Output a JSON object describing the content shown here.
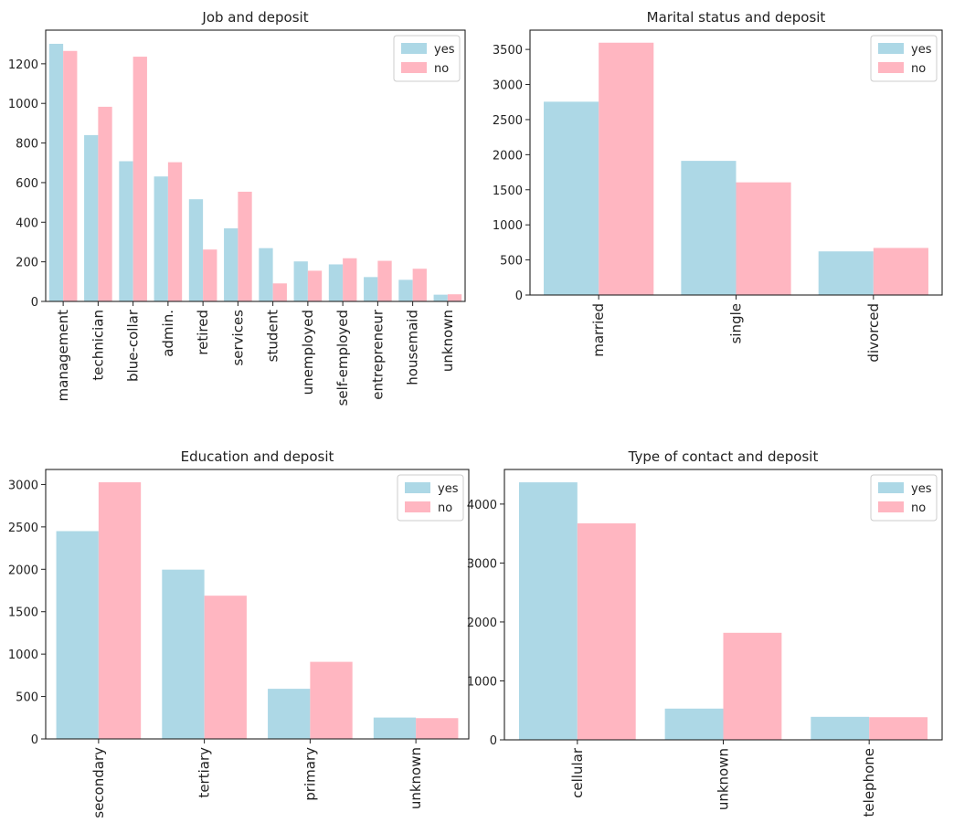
{
  "colors": {
    "yes": "#add8e6",
    "no": "#ffb6c1",
    "axis": "#222222",
    "legend_border": "#cccccc"
  },
  "chart_data": [
    {
      "type": "bar",
      "title": "Job and deposit",
      "categories": [
        "management",
        "technician",
        "blue-collar",
        "admin.",
        "retired",
        "services",
        "student",
        "unemployed",
        "self-employed",
        "entrepreneur",
        "housemaid",
        "unknown"
      ],
      "series": [
        {
          "name": "yes",
          "values": [
            1301,
            840,
            708,
            631,
            516,
            369,
            269,
            202,
            187,
            123,
            109,
            34
          ]
        },
        {
          "name": "no",
          "values": [
            1265,
            983,
            1236,
            703,
            262,
            554,
            91,
            155,
            218,
            205,
            165,
            36
          ]
        }
      ],
      "yticks": [
        0,
        200,
        400,
        600,
        800,
        1000,
        1200
      ],
      "ylim": [
        0,
        1370
      ],
      "legend": "top-right"
    },
    {
      "type": "bar",
      "title": "Marital status and deposit",
      "categories": [
        "married",
        "single",
        "divorced"
      ],
      "series": [
        {
          "name": "yes",
          "values": [
            2755,
            1912,
            622
          ]
        },
        {
          "name": "no",
          "values": [
            3596,
            1606,
            671
          ]
        }
      ],
      "yticks": [
        0,
        500,
        1000,
        1500,
        2000,
        2500,
        3000,
        3500
      ],
      "ylim": [
        0,
        3775
      ],
      "legend": "top-right"
    },
    {
      "type": "bar",
      "title": "Education and deposit",
      "categories": [
        "secondary",
        "tertiary",
        "primary",
        "unknown"
      ],
      "series": [
        {
          "name": "yes",
          "values": [
            2450,
            1996,
            591,
            252
          ]
        },
        {
          "name": "no",
          "values": [
            3026,
            1689,
            909,
            245
          ]
        }
      ],
      "yticks": [
        0,
        500,
        1000,
        1500,
        2000,
        2500,
        3000
      ],
      "ylim": [
        0,
        3177
      ],
      "legend": "top-right"
    },
    {
      "type": "bar",
      "title": "Type of contact and deposit",
      "categories": [
        "cellular",
        "unknown",
        "telephone"
      ],
      "series": [
        {
          "name": "yes",
          "values": [
            4369,
            530,
            390
          ]
        },
        {
          "name": "no",
          "values": [
            3673,
            1816,
            384
          ]
        }
      ],
      "yticks": [
        0,
        1000,
        2000,
        3000,
        4000
      ],
      "ylim": [
        0,
        4587
      ],
      "legend": "top-right"
    }
  ]
}
